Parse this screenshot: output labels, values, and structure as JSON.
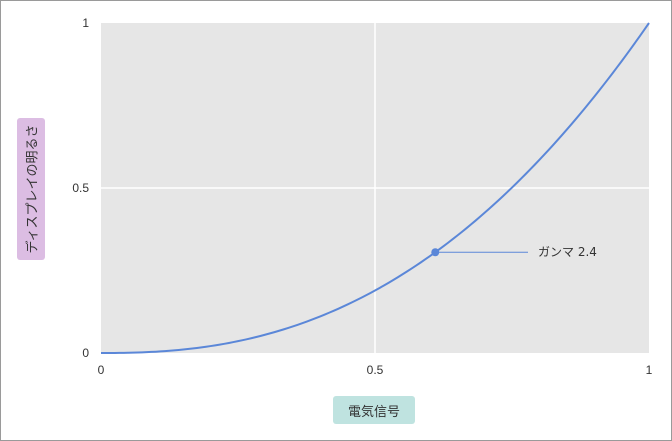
{
  "chart_data": {
    "type": "line",
    "title": "",
    "xlabel": "電気信号",
    "ylabel": "ディスプレイの明るさ",
    "xlim": [
      0,
      1
    ],
    "ylim": [
      0,
      1
    ],
    "x_ticks": [
      "0",
      "0.5",
      "1"
    ],
    "y_ticks": [
      "0",
      "0.5",
      "1"
    ],
    "grid": true,
    "series": [
      {
        "gamma": 2.4,
        "color": "#5b87d8"
      }
    ],
    "annotation": {
      "text": "ガンマ 2.4",
      "x": 0.61,
      "y": 0.305
    }
  },
  "colors": {
    "plot_bg": "#e6e6e6",
    "grid": "#ffffff",
    "line": "#5b87d8",
    "ylabel_bg": "#dcbde3",
    "xlabel_bg": "#bfe3e0"
  }
}
